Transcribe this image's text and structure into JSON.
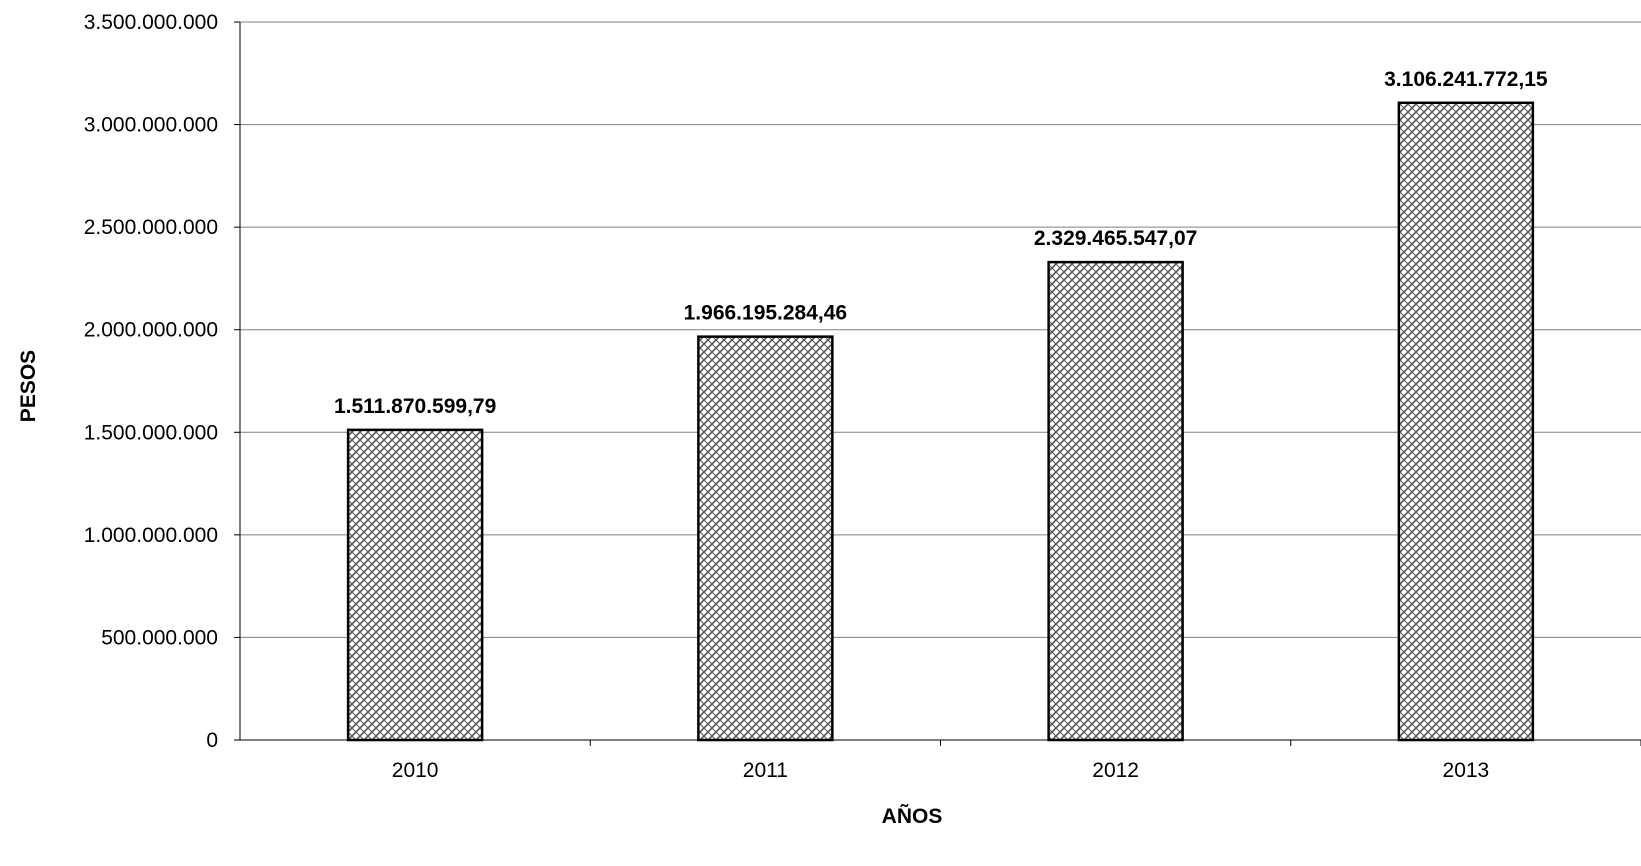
{
  "chart_data": {
    "type": "bar",
    "title": "",
    "xlabel": "AÑOS",
    "ylabel": "PESOS",
    "categories": [
      "2010",
      "2011",
      "2012",
      "2013"
    ],
    "values": [
      1511870599.79,
      1966195284.46,
      2329465547.07,
      3106241772.15
    ],
    "value_labels": [
      "1.511.870.599,79",
      "1.966.195.284,46",
      "2.329.465.547,07",
      "3.106.241.772,15"
    ],
    "ylim": [
      0,
      3500000000
    ],
    "yticks": [
      0,
      500000000,
      1000000000,
      1500000000,
      2000000000,
      2500000000,
      3000000000,
      3500000000
    ],
    "ytick_labels": [
      "0",
      "500.000.000",
      "1.000.000.000",
      "1.500.000.000",
      "2.000.000.000",
      "2.500.000.000",
      "3.000.000.000",
      "3.500.000.000"
    ],
    "grid": true,
    "legend": "none",
    "bar_fill": "hatched",
    "colors": {
      "bar_fill": "#ffffff",
      "bar_hatch": "#555555",
      "bar_border": "#000000",
      "grid": "#808080"
    }
  }
}
